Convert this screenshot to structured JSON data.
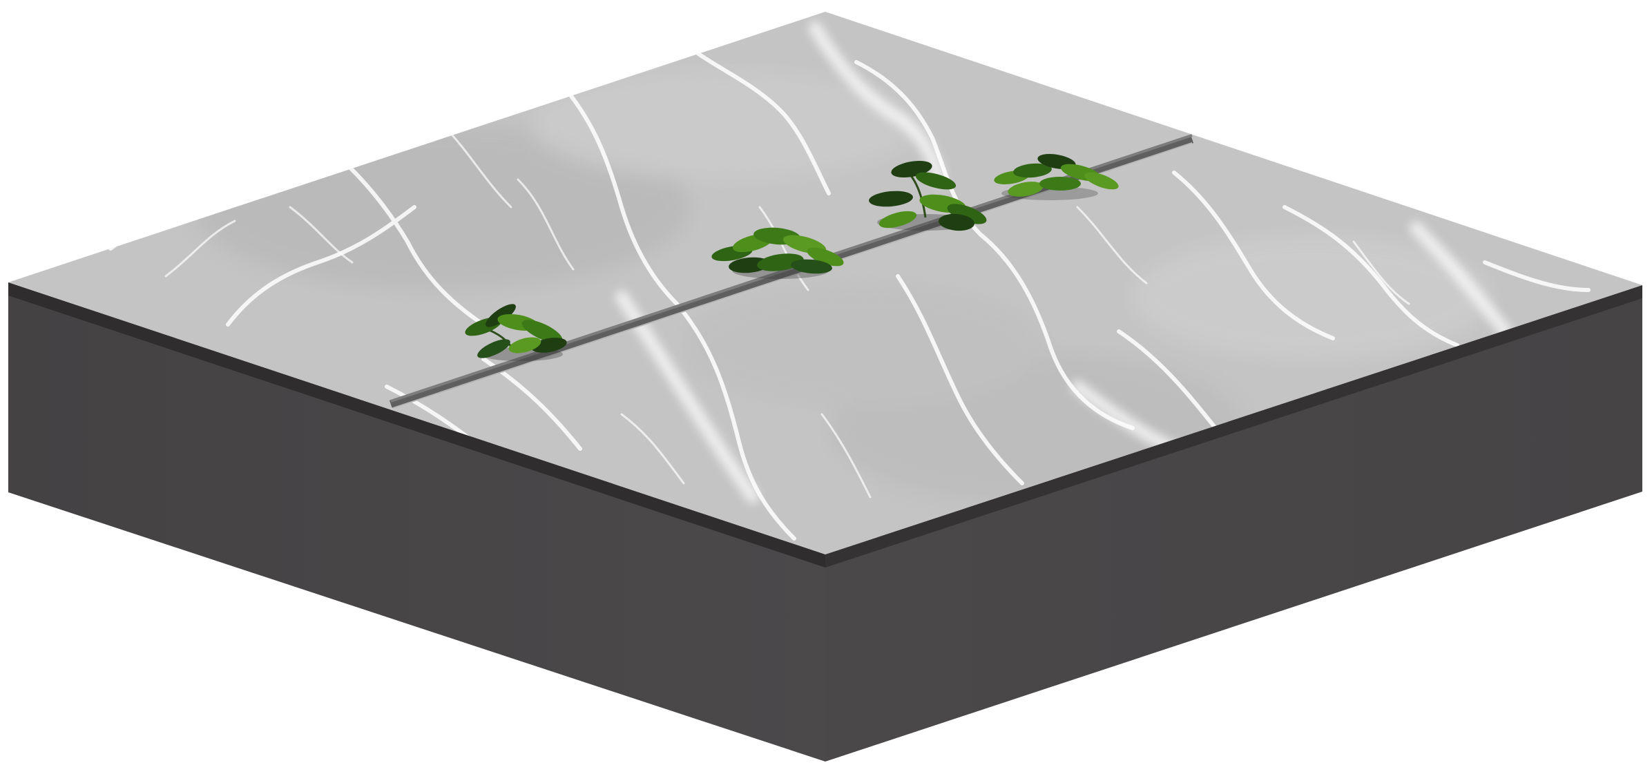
{
  "scene": {
    "subject": "isometric-marble-slab-with-seedlings",
    "colors": {
      "background": "#ffffff",
      "base_left": "#474546",
      "base_right": "#4b494a",
      "rim": "#2f2d2e",
      "marble": "#c4c4c4",
      "marble_dark": "#b4b4b4",
      "vein": "#ffffff",
      "seam": "#6f6f6f",
      "leaf_light": "#4e8f1c",
      "leaf_mid": "#2f6414",
      "leaf_dark": "#1f3f12"
    },
    "plant_count": 4
  }
}
